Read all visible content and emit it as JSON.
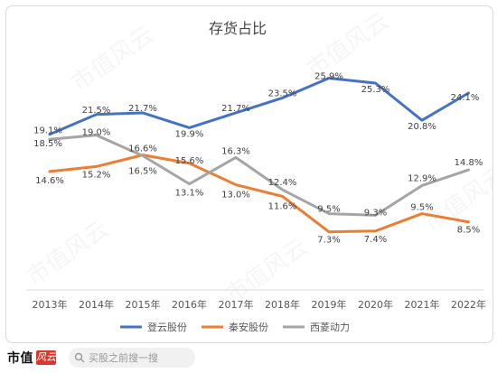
{
  "chart_data": {
    "type": "line",
    "title": "存货占比",
    "categories": [
      "2013年",
      "2014年",
      "2015年",
      "2016年",
      "2017年",
      "2018年",
      "2019年",
      "2020年",
      "2021年",
      "2022年"
    ],
    "ylim": [
      0,
      28
    ],
    "grid": false,
    "legend_position": "bottom",
    "series": [
      {
        "name": "登云股份",
        "color": "#4472c4",
        "values": [
          19.1,
          21.5,
          21.7,
          19.9,
          21.7,
          23.5,
          25.9,
          25.3,
          20.8,
          24.1
        ],
        "labels": [
          "19.1%",
          "21.5%",
          "21.7%",
          "19.9%",
          "21.7%",
          "23.5%",
          "25.9%",
          "25.3%",
          "20.8%",
          "24.1%"
        ]
      },
      {
        "name": "秦安股份",
        "color": "#ed7d31",
        "values": [
          14.6,
          15.2,
          16.6,
          15.6,
          13.0,
          11.6,
          7.3,
          7.4,
          9.5,
          8.5
        ],
        "labels": [
          "14.6%",
          "15.2%",
          "16.6%",
          "15.6%",
          "13.0%",
          "11.6%",
          "7.3%",
          "7.4%",
          "9.5%",
          "8.5%"
        ]
      },
      {
        "name": "西菱动力",
        "color": "#a5a5a5",
        "values": [
          18.5,
          19.0,
          16.5,
          13.1,
          16.3,
          12.4,
          9.5,
          9.3,
          12.9,
          14.8
        ],
        "labels": [
          "18.5%",
          "19.0%",
          "16.5%",
          "13.1%",
          "16.3%",
          "12.4%",
          "9.5%",
          "9.3%",
          "12.9%",
          "14.8%"
        ]
      }
    ]
  },
  "watermark": "市值风云",
  "footer": {
    "brand": "市值",
    "brand_mark": "风云",
    "search_placeholder": "买股之前搜一搜",
    "search_icon": "search-icon"
  }
}
